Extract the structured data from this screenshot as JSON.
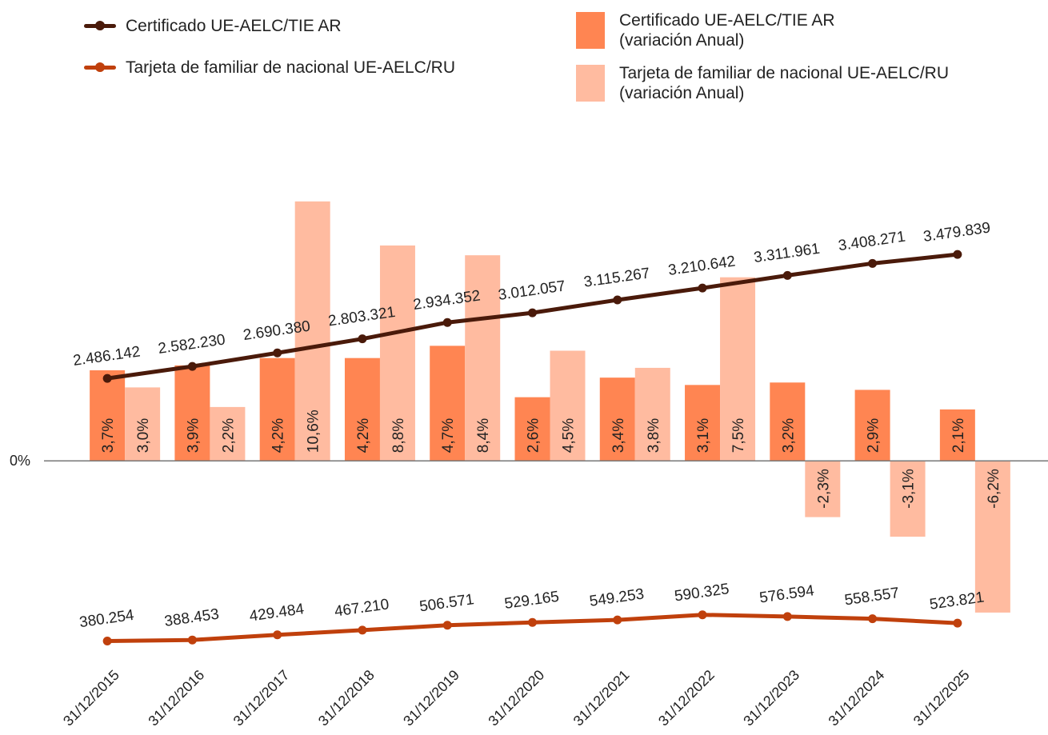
{
  "chart_data": {
    "type": "bar",
    "categories": [
      "31/12/2015",
      "31/12/2016",
      "31/12/2017",
      "31/12/2018",
      "31/12/2019",
      "31/12/2020",
      "31/12/2021",
      "31/12/2022",
      "31/12/2023",
      "31/12/2024",
      "31/12/2025"
    ],
    "series": [
      {
        "name": "Certificado UE-AELC/TIE AR",
        "type": "line",
        "axis": "y2",
        "color": "#4a1a0a",
        "values": [
          2486142,
          2582230,
          2690380,
          2803321,
          2934352,
          3012057,
          3115267,
          3210642,
          3311961,
          3408271,
          3479839
        ],
        "value_labels": [
          "2.486.142",
          "2.582.230",
          "2.690.380",
          "2.803.321",
          "2.934.352",
          "3.012.057",
          "3.115.267",
          "3.210.642",
          "3.311.961",
          "3.408.271",
          "3.479.839"
        ]
      },
      {
        "name": "Tarjeta de familiar de nacional UE-AELC/RU",
        "type": "line",
        "axis": "y2",
        "color": "#c0400c",
        "values": [
          380254,
          388453,
          429484,
          467210,
          506571,
          529165,
          549253,
          590325,
          576594,
          558557,
          523821
        ],
        "value_labels": [
          "380.254",
          "388.453",
          "429.484",
          "467.210",
          "506.571",
          "529.165",
          "549.253",
          "590.325",
          "576.594",
          "558.557",
          "523.821"
        ]
      },
      {
        "name": "Certificado UE-AELC/TIE AR\n(variación Anual)",
        "type": "bar",
        "color": "#ff8552",
        "values": [
          3.7,
          3.9,
          4.2,
          4.2,
          4.7,
          2.6,
          3.4,
          3.1,
          3.2,
          2.9,
          2.1
        ],
        "value_labels": [
          "3,7%",
          "3,9%",
          "4,2%",
          "4,2%",
          "4,7%",
          "2,6%",
          "3,4%",
          "3,1%",
          "3,2%",
          "2,9%",
          "2,1%"
        ]
      },
      {
        "name": "Tarjeta de familiar de nacional UE-AELC/RU\n(variación Anual)",
        "type": "bar",
        "color": "#ffbba0",
        "values": [
          3.0,
          2.2,
          10.6,
          8.8,
          8.4,
          4.5,
          3.8,
          7.5,
          -2.3,
          -3.1,
          -6.2
        ],
        "value_labels": [
          "3,0%",
          "2,2%",
          "10,6%",
          "8,8%",
          "8,4%",
          "4,5%",
          "3,8%",
          "7,5%",
          "-2,3%",
          "-3,1%",
          "-6,2%"
        ]
      }
    ],
    "ylim": [
      -8,
      12
    ],
    "yticks": [
      {
        "value": 0,
        "label": "0%"
      }
    ],
    "y2lim": [
      255000,
      4180000
    ]
  }
}
